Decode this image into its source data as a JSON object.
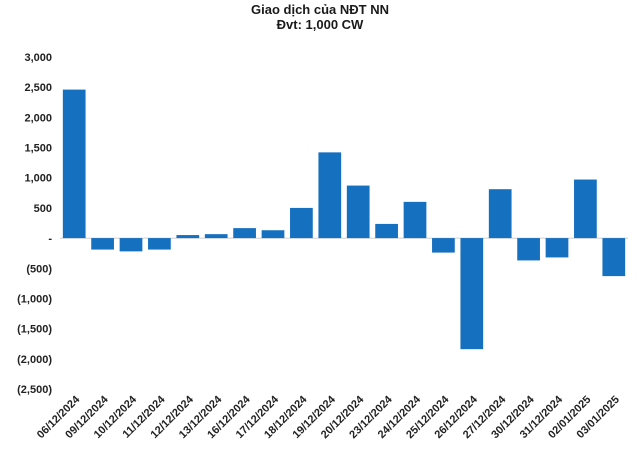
{
  "chart_data": {
    "type": "bar",
    "title": "Giao dịch của NĐT NN",
    "subtitle": "Đvt: 1,000 CW",
    "categories": [
      "06/12/2024",
      "09/12/2024",
      "10/12/2024",
      "11/12/2024",
      "12/12/2024",
      "13/12/2024",
      "16/12/2024",
      "17/12/2024",
      "18/12/2024",
      "19/12/2024",
      "20/12/2024",
      "23/12/2024",
      "24/12/2024",
      "25/12/2024",
      "26/12/2024",
      "27/12/2024",
      "30/12/2024",
      "31/12/2024",
      "02/01/2025",
      "03/01/2025"
    ],
    "values": [
      2460,
      -190,
      -220,
      -190,
      50,
      65,
      165,
      130,
      500,
      1420,
      870,
      235,
      600,
      -240,
      -1840,
      810,
      -370,
      -320,
      970,
      -630
    ],
    "ylim": [
      -2500,
      3000
    ],
    "yticks": [
      3000,
      2500,
      2000,
      1500,
      1000,
      500,
      0,
      -500,
      -1000,
      -1500,
      -2000,
      -2500
    ],
    "ytick_labels": [
      "3,000",
      "2,500",
      "2,000",
      "1,500",
      "1,000",
      "500",
      "-",
      "(500)",
      "(1,000)",
      "(1,500)",
      "(2,000)",
      "(2,500)"
    ],
    "bar_color": "#1570c0",
    "xlabel": "",
    "ylabel": "",
    "grid": false,
    "legend": "none"
  }
}
